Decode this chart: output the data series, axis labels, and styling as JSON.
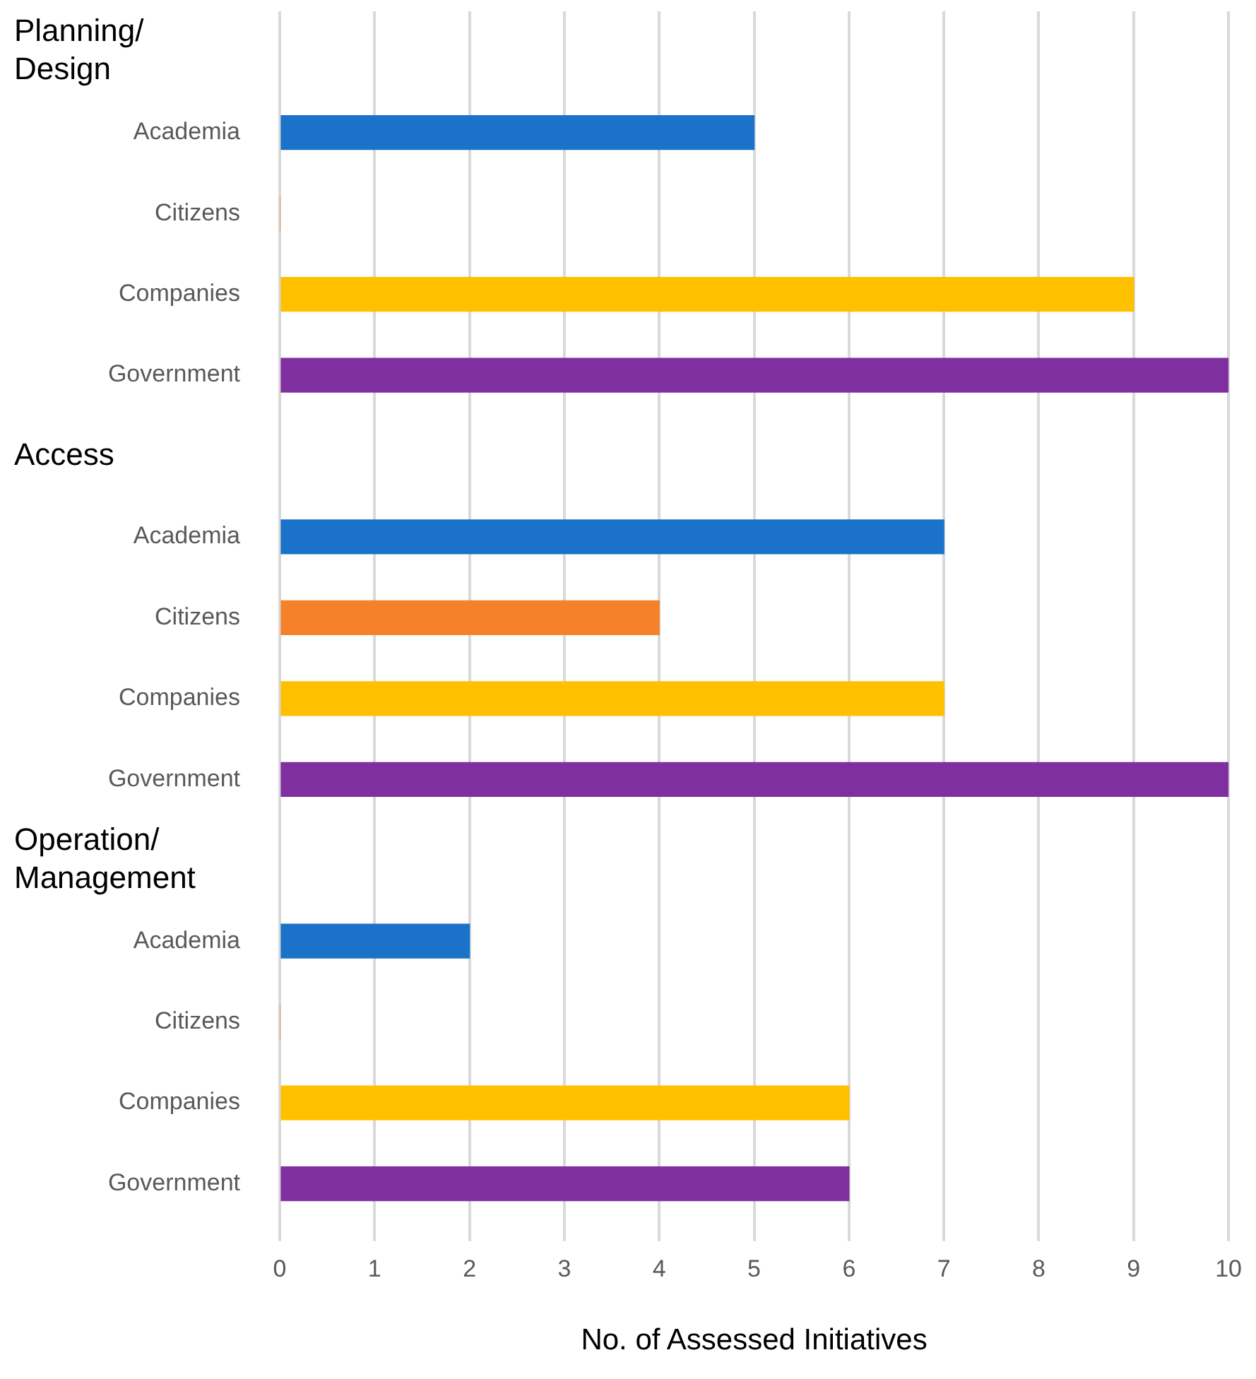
{
  "chart_data": {
    "type": "bar",
    "orientation": "horizontal",
    "xlabel": "No. of Assessed Initiatives",
    "annotations": [
      "Planning/Design",
      "Access",
      "Operation/Management"
    ],
    "categories": [
      null,
      "Academia",
      "Citizens",
      "Companies",
      "Government",
      null,
      "Academia",
      "Citizens",
      "Companies",
      "Government",
      null,
      "Academia",
      "Citizens",
      "Companies",
      "Government"
    ],
    "values": [
      null,
      5,
      0,
      9,
      10,
      null,
      7,
      4,
      7,
      10,
      null,
      2,
      0,
      6,
      6
    ],
    "colors": [
      null,
      "#1a73c8",
      "#f5822a",
      "#ffc000",
      "#7f2fa0",
      null,
      "#1a73c8",
      "#f5822a",
      "#ffc000",
      "#7f2fa0",
      null,
      "#1a73c8",
      "#f5822a",
      "#ffc000",
      "#7f2fa0"
    ],
    "xlim": [
      0,
      10
    ],
    "xticks": [
      0,
      1,
      2,
      3,
      4,
      5,
      6,
      7,
      8,
      9,
      10
    ],
    "grid": "x",
    "legend": false
  }
}
